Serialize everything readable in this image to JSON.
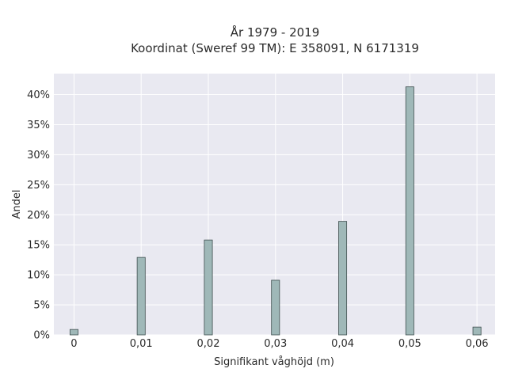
{
  "chart_data": {
    "type": "bar",
    "title_lines": [
      "År 1979 - 2019",
      "Koordinat (Sweref 99 TM): E 358091, N 6171319"
    ],
    "xlabel": "Signifikant våghöjd (m)",
    "ylabel": "Andel",
    "x": [
      0,
      0.01,
      0.02,
      0.03,
      0.04,
      0.05,
      0.06
    ],
    "x_tick_labels": [
      "0",
      "0,01",
      "0,02",
      "0,03",
      "0,04",
      "0,05",
      "0,06"
    ],
    "values": [
      0.9,
      12.9,
      15.8,
      9.1,
      18.9,
      41.3,
      1.3
    ],
    "y_ticks": [
      0,
      5,
      10,
      15,
      20,
      25,
      30,
      35,
      40
    ],
    "y_tick_labels": [
      "0%",
      "5%",
      "10%",
      "15%",
      "20%",
      "25%",
      "30%",
      "35%",
      "40%"
    ],
    "xlim": [
      -0.003,
      0.0627
    ],
    "ylim": [
      0,
      43.5
    ],
    "grid": true,
    "bar_color": "#9fb8b8",
    "edge_color": "#3f4f4f",
    "plot_background": "#e9e9f1"
  }
}
